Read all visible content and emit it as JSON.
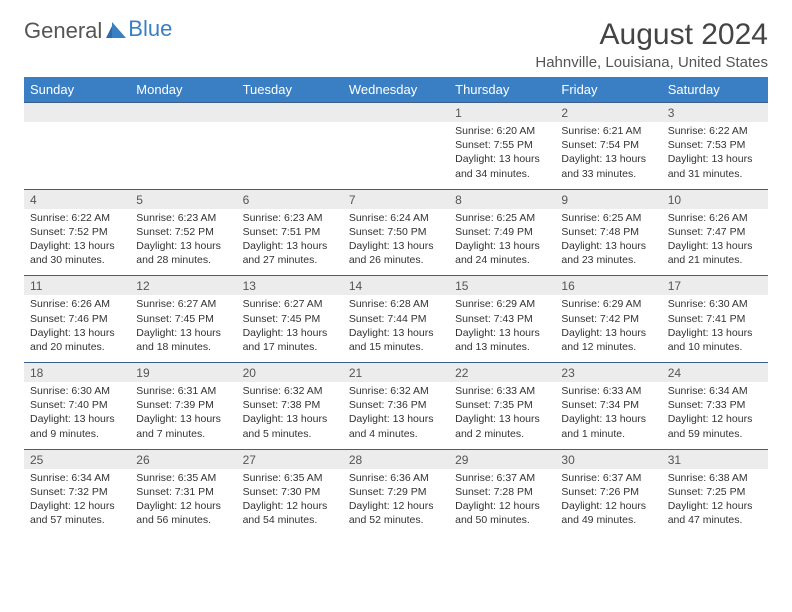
{
  "brand": {
    "part1": "General",
    "part2": "Blue"
  },
  "title": "August 2024",
  "location": "Hahnville, Louisiana, United States",
  "colors": {
    "header_bg": "#3a7fc4",
    "header_text": "#ffffff",
    "daynum_bg": "#ececec",
    "border": "#3a5f8a",
    "text": "#333333"
  },
  "weekdays": [
    "Sunday",
    "Monday",
    "Tuesday",
    "Wednesday",
    "Thursday",
    "Friday",
    "Saturday"
  ],
  "weeks": [
    {
      "nums": [
        "",
        "",
        "",
        "",
        "1",
        "2",
        "3"
      ],
      "cells": [
        null,
        null,
        null,
        null,
        {
          "sr": "Sunrise: 6:20 AM",
          "ss": "Sunset: 7:55 PM",
          "d1": "Daylight: 13 hours",
          "d2": "and 34 minutes."
        },
        {
          "sr": "Sunrise: 6:21 AM",
          "ss": "Sunset: 7:54 PM",
          "d1": "Daylight: 13 hours",
          "d2": "and 33 minutes."
        },
        {
          "sr": "Sunrise: 6:22 AM",
          "ss": "Sunset: 7:53 PM",
          "d1": "Daylight: 13 hours",
          "d2": "and 31 minutes."
        }
      ]
    },
    {
      "nums": [
        "4",
        "5",
        "6",
        "7",
        "8",
        "9",
        "10"
      ],
      "cells": [
        {
          "sr": "Sunrise: 6:22 AM",
          "ss": "Sunset: 7:52 PM",
          "d1": "Daylight: 13 hours",
          "d2": "and 30 minutes."
        },
        {
          "sr": "Sunrise: 6:23 AM",
          "ss": "Sunset: 7:52 PM",
          "d1": "Daylight: 13 hours",
          "d2": "and 28 minutes."
        },
        {
          "sr": "Sunrise: 6:23 AM",
          "ss": "Sunset: 7:51 PM",
          "d1": "Daylight: 13 hours",
          "d2": "and 27 minutes."
        },
        {
          "sr": "Sunrise: 6:24 AM",
          "ss": "Sunset: 7:50 PM",
          "d1": "Daylight: 13 hours",
          "d2": "and 26 minutes."
        },
        {
          "sr": "Sunrise: 6:25 AM",
          "ss": "Sunset: 7:49 PM",
          "d1": "Daylight: 13 hours",
          "d2": "and 24 minutes."
        },
        {
          "sr": "Sunrise: 6:25 AM",
          "ss": "Sunset: 7:48 PM",
          "d1": "Daylight: 13 hours",
          "d2": "and 23 minutes."
        },
        {
          "sr": "Sunrise: 6:26 AM",
          "ss": "Sunset: 7:47 PM",
          "d1": "Daylight: 13 hours",
          "d2": "and 21 minutes."
        }
      ]
    },
    {
      "nums": [
        "11",
        "12",
        "13",
        "14",
        "15",
        "16",
        "17"
      ],
      "cells": [
        {
          "sr": "Sunrise: 6:26 AM",
          "ss": "Sunset: 7:46 PM",
          "d1": "Daylight: 13 hours",
          "d2": "and 20 minutes."
        },
        {
          "sr": "Sunrise: 6:27 AM",
          "ss": "Sunset: 7:45 PM",
          "d1": "Daylight: 13 hours",
          "d2": "and 18 minutes."
        },
        {
          "sr": "Sunrise: 6:27 AM",
          "ss": "Sunset: 7:45 PM",
          "d1": "Daylight: 13 hours",
          "d2": "and 17 minutes."
        },
        {
          "sr": "Sunrise: 6:28 AM",
          "ss": "Sunset: 7:44 PM",
          "d1": "Daylight: 13 hours",
          "d2": "and 15 minutes."
        },
        {
          "sr": "Sunrise: 6:29 AM",
          "ss": "Sunset: 7:43 PM",
          "d1": "Daylight: 13 hours",
          "d2": "and 13 minutes."
        },
        {
          "sr": "Sunrise: 6:29 AM",
          "ss": "Sunset: 7:42 PM",
          "d1": "Daylight: 13 hours",
          "d2": "and 12 minutes."
        },
        {
          "sr": "Sunrise: 6:30 AM",
          "ss": "Sunset: 7:41 PM",
          "d1": "Daylight: 13 hours",
          "d2": "and 10 minutes."
        }
      ]
    },
    {
      "nums": [
        "18",
        "19",
        "20",
        "21",
        "22",
        "23",
        "24"
      ],
      "cells": [
        {
          "sr": "Sunrise: 6:30 AM",
          "ss": "Sunset: 7:40 PM",
          "d1": "Daylight: 13 hours",
          "d2": "and 9 minutes."
        },
        {
          "sr": "Sunrise: 6:31 AM",
          "ss": "Sunset: 7:39 PM",
          "d1": "Daylight: 13 hours",
          "d2": "and 7 minutes."
        },
        {
          "sr": "Sunrise: 6:32 AM",
          "ss": "Sunset: 7:38 PM",
          "d1": "Daylight: 13 hours",
          "d2": "and 5 minutes."
        },
        {
          "sr": "Sunrise: 6:32 AM",
          "ss": "Sunset: 7:36 PM",
          "d1": "Daylight: 13 hours",
          "d2": "and 4 minutes."
        },
        {
          "sr": "Sunrise: 6:33 AM",
          "ss": "Sunset: 7:35 PM",
          "d1": "Daylight: 13 hours",
          "d2": "and 2 minutes."
        },
        {
          "sr": "Sunrise: 6:33 AM",
          "ss": "Sunset: 7:34 PM",
          "d1": "Daylight: 13 hours",
          "d2": "and 1 minute."
        },
        {
          "sr": "Sunrise: 6:34 AM",
          "ss": "Sunset: 7:33 PM",
          "d1": "Daylight: 12 hours",
          "d2": "and 59 minutes."
        }
      ]
    },
    {
      "nums": [
        "25",
        "26",
        "27",
        "28",
        "29",
        "30",
        "31"
      ],
      "cells": [
        {
          "sr": "Sunrise: 6:34 AM",
          "ss": "Sunset: 7:32 PM",
          "d1": "Daylight: 12 hours",
          "d2": "and 57 minutes."
        },
        {
          "sr": "Sunrise: 6:35 AM",
          "ss": "Sunset: 7:31 PM",
          "d1": "Daylight: 12 hours",
          "d2": "and 56 minutes."
        },
        {
          "sr": "Sunrise: 6:35 AM",
          "ss": "Sunset: 7:30 PM",
          "d1": "Daylight: 12 hours",
          "d2": "and 54 minutes."
        },
        {
          "sr": "Sunrise: 6:36 AM",
          "ss": "Sunset: 7:29 PM",
          "d1": "Daylight: 12 hours",
          "d2": "and 52 minutes."
        },
        {
          "sr": "Sunrise: 6:37 AM",
          "ss": "Sunset: 7:28 PM",
          "d1": "Daylight: 12 hours",
          "d2": "and 50 minutes."
        },
        {
          "sr": "Sunrise: 6:37 AM",
          "ss": "Sunset: 7:26 PM",
          "d1": "Daylight: 12 hours",
          "d2": "and 49 minutes."
        },
        {
          "sr": "Sunrise: 6:38 AM",
          "ss": "Sunset: 7:25 PM",
          "d1": "Daylight: 12 hours",
          "d2": "and 47 minutes."
        }
      ]
    }
  ]
}
